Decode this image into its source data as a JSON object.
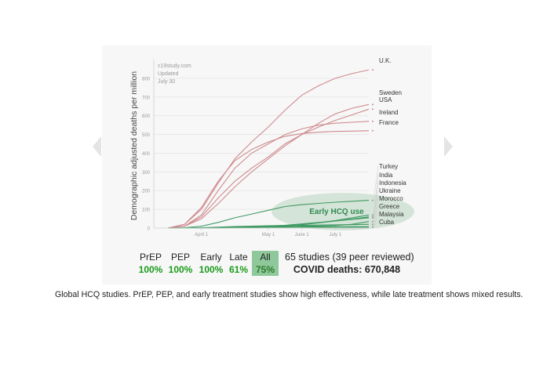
{
  "chart_data": {
    "type": "line",
    "ylabel": "Demographic adjusted deaths per million",
    "ylim": [
      0,
      900
    ],
    "y_ticks": [
      "0",
      "100",
      "200",
      "300",
      "400",
      "500",
      "600",
      "700",
      "800"
    ],
    "x_ticks": [
      "April 1",
      "May 1",
      "June 1",
      "July 1"
    ],
    "source_note": [
      "c19study.com",
      "Updated",
      "July 30"
    ],
    "x": [
      "Mar 15",
      "Mar 25",
      "Apr 1",
      "Apr 8",
      "Apr 15",
      "Apr 22",
      "May 1",
      "May 15",
      "Jun 1",
      "Jun 15",
      "Jul 1",
      "Jul 15",
      "Jul 30"
    ],
    "series": [
      {
        "name": "U.K.",
        "group": "high",
        "values": [
          0,
          20,
          100,
          240,
          370,
          460,
          540,
          630,
          710,
          760,
          800,
          825,
          845
        ]
      },
      {
        "name": "Sweden",
        "group": "high",
        "values": [
          0,
          10,
          50,
          130,
          220,
          300,
          370,
          440,
          500,
          560,
          610,
          640,
          660
        ]
      },
      {
        "name": "USA",
        "group": "high",
        "values": [
          0,
          10,
          60,
          160,
          250,
          320,
          380,
          450,
          500,
          540,
          575,
          605,
          635
        ]
      },
      {
        "name": "Ireland",
        "group": "high",
        "values": [
          0,
          10,
          70,
          200,
          320,
          400,
          450,
          500,
          530,
          550,
          560,
          565,
          570
        ]
      },
      {
        "name": "France",
        "group": "high",
        "values": [
          0,
          20,
          110,
          250,
          360,
          420,
          460,
          490,
          505,
          512,
          516,
          518,
          520
        ]
      },
      {
        "name": "Turkey",
        "group": "low",
        "values": [
          0,
          2,
          10,
          30,
          55,
          75,
          95,
          115,
          125,
          132,
          138,
          143,
          148
        ]
      },
      {
        "name": "India",
        "group": "low",
        "values": [
          0,
          0,
          0,
          1,
          2,
          3,
          5,
          10,
          18,
          28,
          40,
          55,
          70
        ]
      },
      {
        "name": "Indonesia",
        "group": "low",
        "values": [
          0,
          0,
          1,
          2,
          4,
          6,
          9,
          14,
          20,
          28,
          38,
          48,
          60
        ]
      },
      {
        "name": "Ukraine",
        "group": "low",
        "values": [
          0,
          0,
          1,
          2,
          4,
          7,
          10,
          15,
          22,
          30,
          38,
          46,
          55
        ]
      },
      {
        "name": "Morocco",
        "group": "low",
        "values": [
          0,
          0,
          1,
          3,
          5,
          7,
          8,
          9,
          10,
          11,
          13,
          20,
          35
        ]
      },
      {
        "name": "Greece",
        "group": "low",
        "values": [
          0,
          0,
          2,
          5,
          8,
          10,
          12,
          14,
          15,
          16,
          17,
          18,
          20
        ]
      },
      {
        "name": "Malaysia",
        "group": "low",
        "values": [
          0,
          0,
          1,
          2,
          3,
          4,
          4,
          5,
          5,
          5,
          5,
          5,
          5
        ]
      },
      {
        "name": "Cuba",
        "group": "low",
        "values": [
          0,
          0,
          0,
          1,
          2,
          3,
          4,
          5,
          6,
          6,
          6,
          7,
          7
        ]
      }
    ],
    "highlight_label": "Early HCQ use",
    "colors": {
      "high": "#cf8a8e",
      "low": "#3f9a63",
      "highlight": "#cfe0d2",
      "highlight_text": "#2e8b52"
    }
  },
  "stats": [
    {
      "label": "PrEP",
      "value": "100%",
      "active": false
    },
    {
      "label": "PEP",
      "value": "100%",
      "active": false
    },
    {
      "label": "Early",
      "value": "100%",
      "active": false
    },
    {
      "label": "Late",
      "value": "61%",
      "active": false
    },
    {
      "label": "All",
      "value": "75%",
      "active": true
    }
  ],
  "summary": {
    "studies": "65 studies (39 peer reviewed)",
    "deaths": "COVID deaths: 670,848"
  },
  "caption": "Global HCQ studies. PrEP, PEP, and early treatment studies show high effectiveness, while late treatment shows mixed results."
}
